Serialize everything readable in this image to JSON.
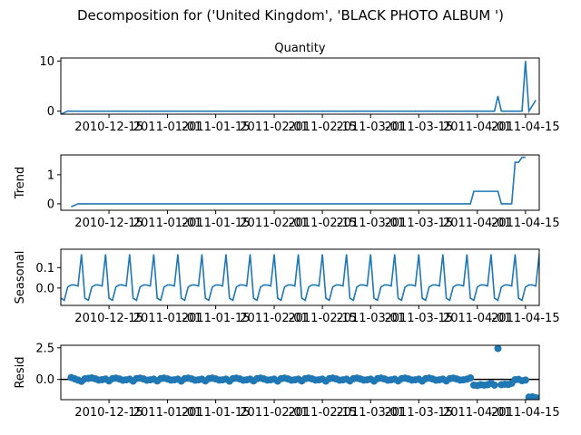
{
  "figure_title": "Decomposition for ('United Kingdom', 'BLACK PHOTO ALBUM ')",
  "colors": {
    "line": "#1f77b4",
    "axis": "#000000",
    "zero_line": "#000000"
  },
  "chart_data": [
    {
      "type": "line",
      "title": "Quantity",
      "ylabel": "",
      "yticks": [
        0,
        10
      ],
      "ylim": [
        -0.6,
        10.6
      ],
      "xlim": [
        "2010-12-01",
        "2011-04-19"
      ],
      "xticks": [
        "2010-12-15",
        "2011-01-01",
        "2011-01-15",
        "2011-02-01",
        "2011-02-15",
        "2011-03-01",
        "2011-03-15",
        "2011-04-01",
        "2011-04-15"
      ],
      "series": [
        {
          "x": [
            "2010-12-01",
            "2010-12-03",
            "2011-04-06",
            "2011-04-07",
            "2011-04-08",
            "2011-04-14",
            "2011-04-15",
            "2011-04-16",
            "2011-04-18"
          ],
          "y": [
            -0.6,
            0,
            0,
            3,
            0,
            0,
            10,
            0,
            2.2
          ]
        }
      ]
    },
    {
      "type": "line",
      "title": "",
      "ylabel": "Trend",
      "yticks": [
        0,
        1
      ],
      "ylim": [
        -0.22,
        1.68
      ],
      "xlim": [
        "2010-12-01",
        "2011-04-19"
      ],
      "xticks": [
        "2010-12-15",
        "2011-01-01",
        "2011-01-15",
        "2011-02-01",
        "2011-02-15",
        "2011-03-01",
        "2011-03-15",
        "2011-04-01",
        "2011-04-15"
      ],
      "series": [
        {
          "x": [
            "2010-12-04",
            "2010-12-06",
            "2011-03-30",
            "2011-03-31",
            "2011-04-07",
            "2011-04-08",
            "2011-04-11",
            "2011-04-12",
            "2011-04-13",
            "2011-04-14",
            "2011-04-15"
          ],
          "y": [
            -0.1,
            0,
            0,
            0.43,
            0.43,
            0,
            0,
            1.43,
            1.43,
            1.6,
            1.6
          ]
        }
      ]
    },
    {
      "type": "line",
      "title": "",
      "ylabel": "Seasonal",
      "yticks": [
        0.0,
        0.1
      ],
      "ylim": [
        -0.085,
        0.19
      ],
      "xlim": [
        "2010-12-01",
        "2011-04-19"
      ],
      "xticks": [
        "2010-12-15",
        "2011-01-01",
        "2011-01-15",
        "2011-02-01",
        "2011-02-15",
        "2011-03-01",
        "2011-03-15",
        "2011-04-01",
        "2011-04-15"
      ],
      "seasonal_pattern": [
        -0.05,
        -0.06,
        0.005,
        0.015,
        0.015,
        0.01,
        0.165
      ],
      "seasonal_start": "2010-12-01",
      "seasonal_end": "2011-04-19"
    },
    {
      "type": "scatter",
      "title": "",
      "ylabel": "Resid",
      "yticks": [
        0.0,
        2.5
      ],
      "ylim": [
        -1.6,
        2.7
      ],
      "xlim": [
        "2010-12-01",
        "2011-04-19"
      ],
      "xticks": [
        "2010-12-15",
        "2011-01-01",
        "2011-01-15",
        "2011-02-01",
        "2011-02-15",
        "2011-03-01",
        "2011-03-15",
        "2011-04-01",
        "2011-04-15"
      ],
      "zero_line": true,
      "points": [
        {
          "x": "2010-12-04",
          "y": 0.15
        },
        {
          "x": "2010-12-05",
          "y": 0.05
        },
        {
          "x": "2010-12-06",
          "y": -0.05
        },
        {
          "x": "2010-12-07",
          "y": -0.15
        },
        {
          "x": "2010-12-08",
          "y": 0.05
        },
        {
          "x": "2010-12-09",
          "y": 0.08
        },
        {
          "x": "2010-12-10",
          "y": 0.12
        },
        {
          "x": "2010-12-11",
          "y": 0.05
        },
        {
          "x": "2010-12-12",
          "y": -0.05
        },
        {
          "x": "2010-12-13",
          "y": -0.02
        },
        {
          "x": "2010-12-14",
          "y": 0.03
        },
        {
          "x": "2010-12-15",
          "y": -0.12
        },
        {
          "x": "2010-12-16",
          "y": 0.06
        },
        {
          "x": "2010-12-17",
          "y": 0.1
        },
        {
          "x": "2010-12-18",
          "y": 0.04
        },
        {
          "x": "2010-12-19",
          "y": -0.06
        },
        {
          "x": "2010-12-20",
          "y": -0.03
        },
        {
          "x": "2010-12-21",
          "y": 0.02
        },
        {
          "x": "2010-12-22",
          "y": -0.13
        },
        {
          "x": "2010-12-23",
          "y": 0.07
        },
        {
          "x": "2010-12-24",
          "y": 0.1
        },
        {
          "x": "2010-12-25",
          "y": 0.04
        },
        {
          "x": "2010-12-26",
          "y": -0.06
        },
        {
          "x": "2010-12-27",
          "y": -0.03
        },
        {
          "x": "2010-12-28",
          "y": 0.02
        },
        {
          "x": "2010-12-29",
          "y": -0.12
        },
        {
          "x": "2010-12-30",
          "y": 0.06
        },
        {
          "x": "2010-12-31",
          "y": 0.1
        },
        {
          "x": "2011-01-01",
          "y": 0.04
        },
        {
          "x": "2011-01-02",
          "y": -0.05
        },
        {
          "x": "2011-01-03",
          "y": -0.03
        },
        {
          "x": "2011-01-04",
          "y": 0.02
        },
        {
          "x": "2011-01-05",
          "y": -0.13
        },
        {
          "x": "2011-01-06",
          "y": 0.06
        },
        {
          "x": "2011-01-07",
          "y": 0.1
        },
        {
          "x": "2011-01-08",
          "y": 0.04
        },
        {
          "x": "2011-01-09",
          "y": -0.06
        },
        {
          "x": "2011-01-10",
          "y": -0.03
        },
        {
          "x": "2011-01-11",
          "y": 0.02
        },
        {
          "x": "2011-01-12",
          "y": -0.12
        },
        {
          "x": "2011-01-13",
          "y": 0.06
        },
        {
          "x": "2011-01-14",
          "y": 0.1
        },
        {
          "x": "2011-01-15",
          "y": 0.04
        },
        {
          "x": "2011-01-16",
          "y": -0.05
        },
        {
          "x": "2011-01-17",
          "y": -0.03
        },
        {
          "x": "2011-01-18",
          "y": 0.02
        },
        {
          "x": "2011-01-19",
          "y": -0.13
        },
        {
          "x": "2011-01-20",
          "y": 0.06
        },
        {
          "x": "2011-01-21",
          "y": 0.1
        },
        {
          "x": "2011-01-22",
          "y": 0.04
        },
        {
          "x": "2011-01-23",
          "y": -0.06
        },
        {
          "x": "2011-01-24",
          "y": -0.03
        },
        {
          "x": "2011-01-25",
          "y": 0.02
        },
        {
          "x": "2011-01-26",
          "y": -0.12
        },
        {
          "x": "2011-01-27",
          "y": 0.06
        },
        {
          "x": "2011-01-28",
          "y": 0.1
        },
        {
          "x": "2011-01-29",
          "y": 0.04
        },
        {
          "x": "2011-01-30",
          "y": -0.05
        },
        {
          "x": "2011-01-31",
          "y": -0.03
        },
        {
          "x": "2011-02-01",
          "y": 0.02
        },
        {
          "x": "2011-02-02",
          "y": -0.13
        },
        {
          "x": "2011-02-03",
          "y": 0.06
        },
        {
          "x": "2011-02-04",
          "y": 0.1
        },
        {
          "x": "2011-02-05",
          "y": 0.04
        },
        {
          "x": "2011-02-06",
          "y": -0.06
        },
        {
          "x": "2011-02-07",
          "y": -0.03
        },
        {
          "x": "2011-02-08",
          "y": 0.02
        },
        {
          "x": "2011-02-09",
          "y": -0.12
        },
        {
          "x": "2011-02-10",
          "y": 0.06
        },
        {
          "x": "2011-02-11",
          "y": 0.1
        },
        {
          "x": "2011-02-12",
          "y": 0.04
        },
        {
          "x": "2011-02-13",
          "y": -0.05
        },
        {
          "x": "2011-02-14",
          "y": -0.03
        },
        {
          "x": "2011-02-15",
          "y": 0.02
        },
        {
          "x": "2011-02-16",
          "y": -0.13
        },
        {
          "x": "2011-02-17",
          "y": 0.06
        },
        {
          "x": "2011-02-18",
          "y": 0.1
        },
        {
          "x": "2011-02-19",
          "y": 0.04
        },
        {
          "x": "2011-02-20",
          "y": -0.06
        },
        {
          "x": "2011-02-21",
          "y": -0.03
        },
        {
          "x": "2011-02-22",
          "y": 0.02
        },
        {
          "x": "2011-02-23",
          "y": -0.12
        },
        {
          "x": "2011-02-24",
          "y": 0.06
        },
        {
          "x": "2011-02-25",
          "y": 0.1
        },
        {
          "x": "2011-02-26",
          "y": 0.04
        },
        {
          "x": "2011-02-27",
          "y": -0.05
        },
        {
          "x": "2011-02-28",
          "y": -0.03
        },
        {
          "x": "2011-03-01",
          "y": 0.02
        },
        {
          "x": "2011-03-02",
          "y": -0.13
        },
        {
          "x": "2011-03-03",
          "y": 0.06
        },
        {
          "x": "2011-03-04",
          "y": 0.1
        },
        {
          "x": "2011-03-05",
          "y": 0.04
        },
        {
          "x": "2011-03-06",
          "y": -0.06
        },
        {
          "x": "2011-03-07",
          "y": -0.03
        },
        {
          "x": "2011-03-08",
          "y": 0.02
        },
        {
          "x": "2011-03-09",
          "y": -0.12
        },
        {
          "x": "2011-03-10",
          "y": 0.06
        },
        {
          "x": "2011-03-11",
          "y": 0.1
        },
        {
          "x": "2011-03-12",
          "y": 0.04
        },
        {
          "x": "2011-03-13",
          "y": -0.05
        },
        {
          "x": "2011-03-14",
          "y": -0.03
        },
        {
          "x": "2011-03-15",
          "y": 0.02
        },
        {
          "x": "2011-03-16",
          "y": -0.13
        },
        {
          "x": "2011-03-17",
          "y": 0.06
        },
        {
          "x": "2011-03-18",
          "y": 0.1
        },
        {
          "x": "2011-03-19",
          "y": 0.04
        },
        {
          "x": "2011-03-20",
          "y": -0.06
        },
        {
          "x": "2011-03-21",
          "y": -0.03
        },
        {
          "x": "2011-03-22",
          "y": 0.02
        },
        {
          "x": "2011-03-23",
          "y": -0.12
        },
        {
          "x": "2011-03-24",
          "y": 0.06
        },
        {
          "x": "2011-03-25",
          "y": 0.1
        },
        {
          "x": "2011-03-26",
          "y": 0.04
        },
        {
          "x": "2011-03-27",
          "y": -0.05
        },
        {
          "x": "2011-03-28",
          "y": -0.03
        },
        {
          "x": "2011-03-29",
          "y": 0.02
        },
        {
          "x": "2011-03-30",
          "y": 0.12
        },
        {
          "x": "2011-03-31",
          "y": -0.45
        },
        {
          "x": "2011-04-01",
          "y": -0.48
        },
        {
          "x": "2011-04-02",
          "y": -0.42
        },
        {
          "x": "2011-04-03",
          "y": -0.45
        },
        {
          "x": "2011-04-04",
          "y": -0.42
        },
        {
          "x": "2011-04-05",
          "y": -0.3
        },
        {
          "x": "2011-04-06",
          "y": -0.45
        },
        {
          "x": "2011-04-07",
          "y": 2.45
        },
        {
          "x": "2011-04-08",
          "y": -0.42
        },
        {
          "x": "2011-04-09",
          "y": -0.38
        },
        {
          "x": "2011-04-10",
          "y": -0.4
        },
        {
          "x": "2011-04-11",
          "y": -0.3
        },
        {
          "x": "2011-04-12",
          "y": -0.02
        },
        {
          "x": "2011-04-13",
          "y": 0.0
        },
        {
          "x": "2011-04-14",
          "y": -0.1
        },
        {
          "x": "2011-04-15",
          "y": -0.05
        },
        {
          "x": "2011-04-16",
          "y": -1.4
        },
        {
          "x": "2011-04-17",
          "y": -1.38
        },
        {
          "x": "2011-04-18",
          "y": -1.45
        },
        {
          "x": "2011-04-19",
          "y": -1.5
        }
      ]
    }
  ]
}
